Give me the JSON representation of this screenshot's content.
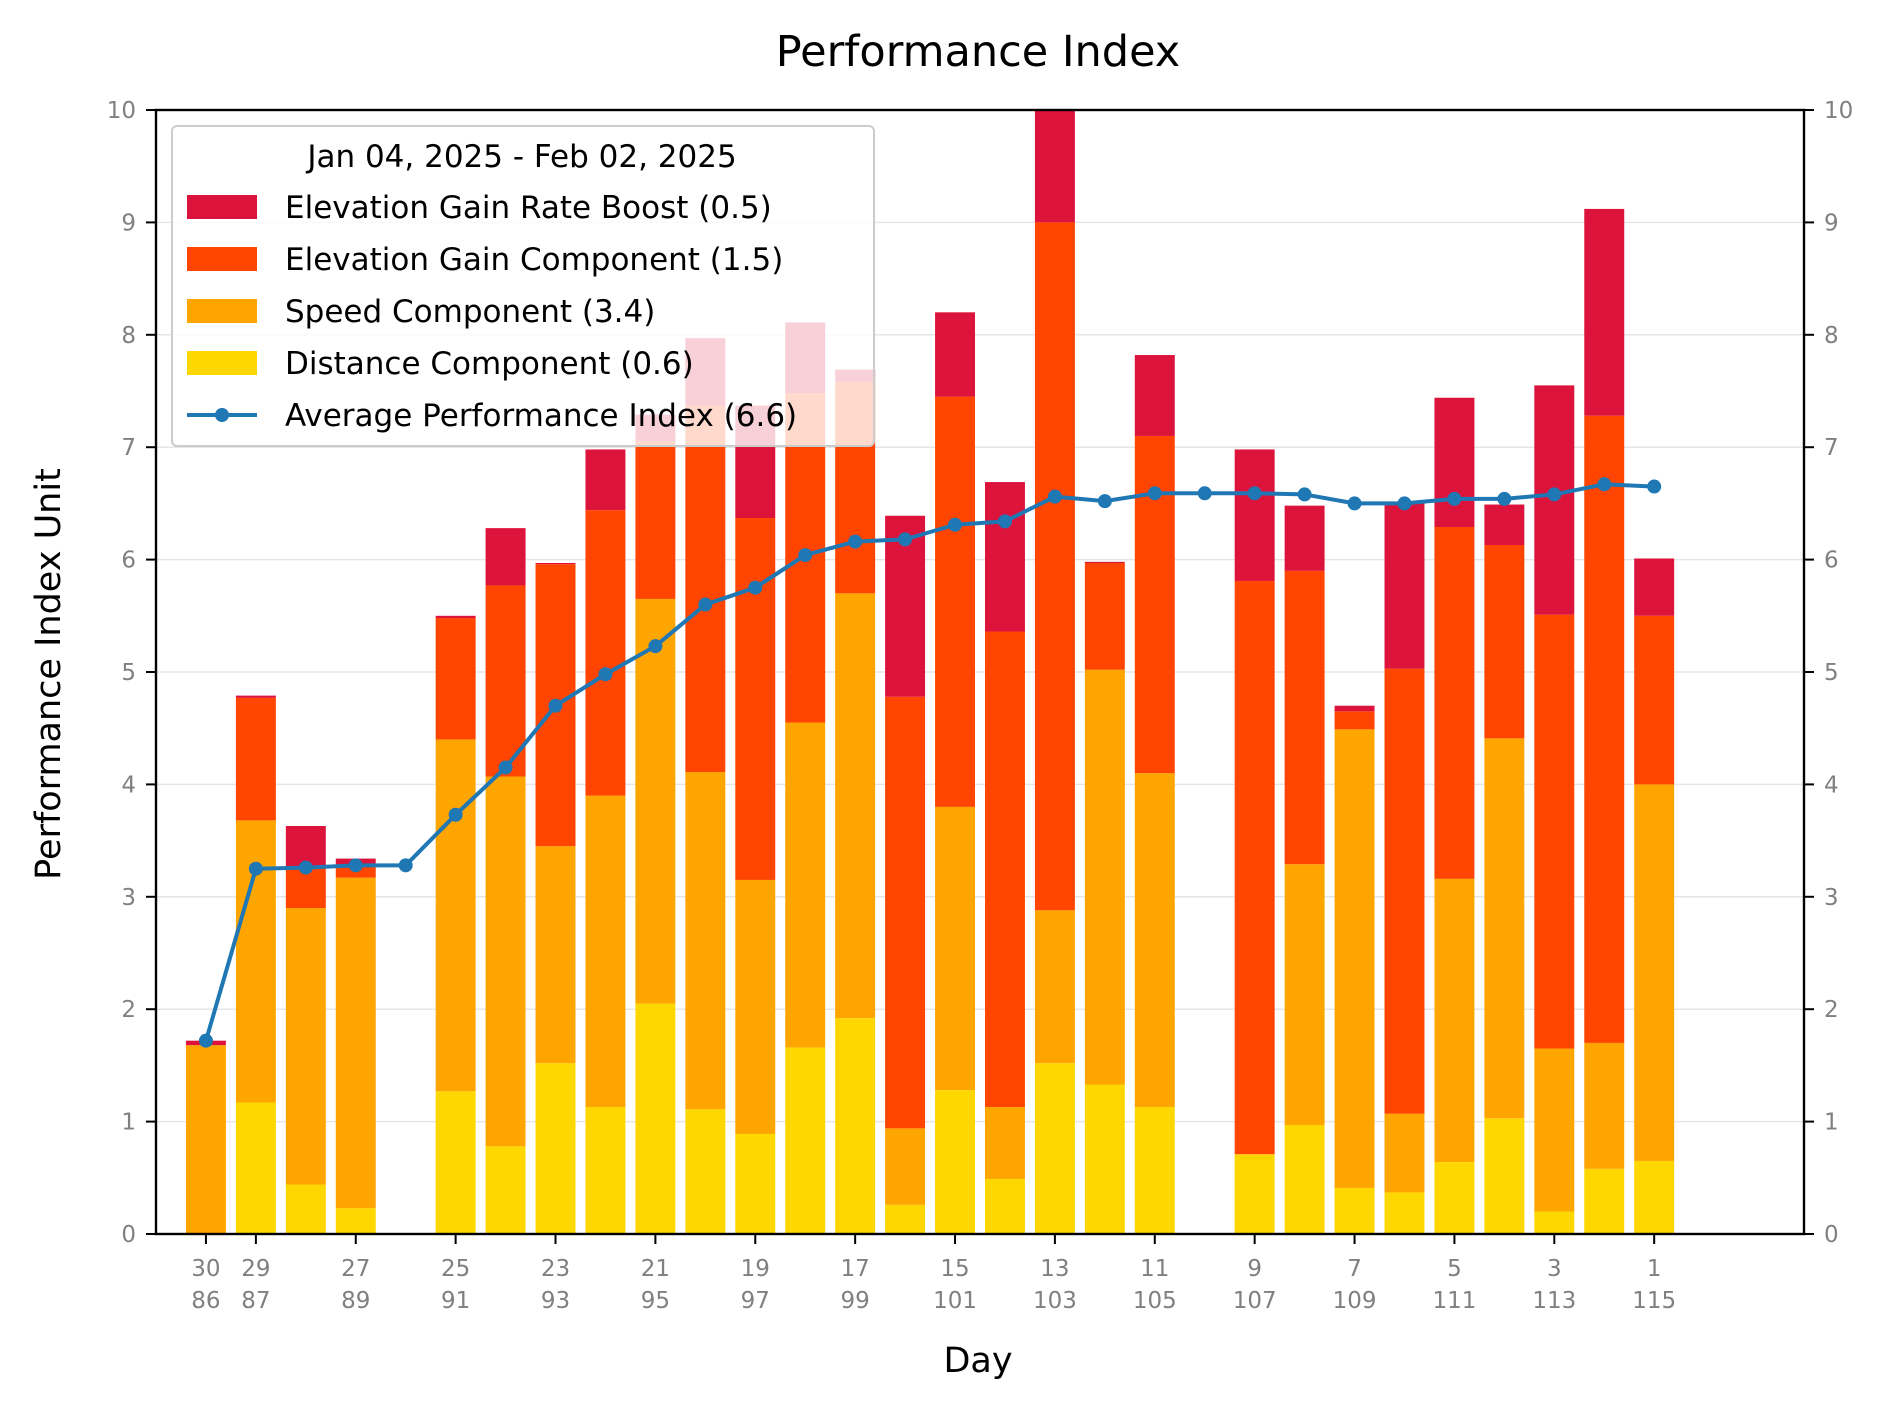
{
  "chart_data": {
    "type": "bar",
    "title": "Performance Index",
    "xlabel": "Day",
    "ylabel": "Performance Index Unit",
    "ylim": [
      0,
      10
    ],
    "yticks": [
      "0",
      "1",
      "2",
      "3",
      "4",
      "5",
      "6",
      "7",
      "8",
      "9",
      "10"
    ],
    "xlim": [
      85,
      118
    ],
    "stacked": true,
    "grid": "horizontal",
    "legend_position": "top-left",
    "legend_title": "Jan 04, 2025 - Feb 02, 2025",
    "x_ticks": [
      {
        "x": 86,
        "top": "30",
        "bottom": "86"
      },
      {
        "x": 87,
        "top": "29",
        "bottom": "87"
      },
      {
        "x": 89,
        "top": "27",
        "bottom": "89"
      },
      {
        "x": 91,
        "top": "25",
        "bottom": "91"
      },
      {
        "x": 93,
        "top": "23",
        "bottom": "93"
      },
      {
        "x": 95,
        "top": "21",
        "bottom": "95"
      },
      {
        "x": 97,
        "top": "19",
        "bottom": "97"
      },
      {
        "x": 99,
        "top": "17",
        "bottom": "99"
      },
      {
        "x": 101,
        "top": "15",
        "bottom": "101"
      },
      {
        "x": 103,
        "top": "13",
        "bottom": "103"
      },
      {
        "x": 105,
        "top": "11",
        "bottom": "105"
      },
      {
        "x": 107,
        "top": "9",
        "bottom": "107"
      },
      {
        "x": 109,
        "top": "7",
        "bottom": "109"
      },
      {
        "x": 111,
        "top": "5",
        "bottom": "111"
      },
      {
        "x": 113,
        "top": "3",
        "bottom": "113"
      },
      {
        "x": 115,
        "top": "1",
        "bottom": "115"
      }
    ],
    "x": [
      86,
      87,
      88,
      89,
      90,
      91,
      92,
      93,
      94,
      95,
      96,
      97,
      98,
      99,
      100,
      101,
      102,
      103,
      104,
      105,
      106,
      107,
      108,
      109,
      110,
      111,
      112,
      113,
      114,
      115
    ],
    "bar_series": [
      {
        "name": "Distance Component (0.6)",
        "color": "#FFD700",
        "values": [
          0,
          1.17,
          0.44,
          0.23,
          null,
          1.27,
          0.78,
          1.52,
          1.13,
          2.05,
          1.11,
          0.89,
          1.66,
          1.92,
          0.26,
          1.28,
          0.49,
          1.52,
          1.33,
          1.13,
          null,
          0.71,
          0.97,
          0.41,
          0.37,
          0.64,
          1.03,
          0.2,
          0.58,
          0.65
        ]
      },
      {
        "name": "Speed Component (3.4)",
        "color": "#FFA500",
        "values": [
          1.68,
          2.51,
          2.46,
          2.94,
          null,
          3.13,
          3.29,
          1.93,
          2.77,
          3.6,
          3.0,
          2.26,
          2.89,
          3.78,
          0.68,
          2.52,
          0.64,
          1.36,
          3.69,
          2.97,
          null,
          0,
          2.32,
          4.08,
          0.7,
          2.52,
          3.38,
          1.45,
          1.12,
          3.35
        ]
      },
      {
        "name": "Elevation Gain Component (1.5)",
        "color": "#FF4500",
        "values": [
          0,
          1.09,
          0.37,
          0.1,
          null,
          1.08,
          1.7,
          2.51,
          2.54,
          1.4,
          3.26,
          3.22,
          2.93,
          1.88,
          3.84,
          3.65,
          4.23,
          6.12,
          0.95,
          3.0,
          null,
          5.1,
          2.61,
          0.16,
          3.96,
          3.13,
          1.72,
          3.86,
          5.58,
          1.5
        ]
      },
      {
        "name": "Elevation Gain Rate Boost (0.5)",
        "color": "#DC143C",
        "values": [
          0.04,
          0.02,
          0.36,
          0.07,
          null,
          0.02,
          0.51,
          0.01,
          0.54,
          0.24,
          0.6,
          1.0,
          0.63,
          0.11,
          1.61,
          0.75,
          1.33,
          1.0,
          0.01,
          0.72,
          null,
          1.17,
          0.58,
          0.05,
          1.47,
          1.15,
          0.36,
          2.04,
          1.84,
          0.51
        ]
      }
    ],
    "line_series": {
      "name": "Average Performance Index (6.6)",
      "color": "#1F77B4",
      "x": [
        86,
        87,
        88,
        89,
        90,
        91,
        92,
        93,
        94,
        95,
        96,
        97,
        98,
        99,
        100,
        101,
        102,
        103,
        104,
        105,
        106,
        107,
        108,
        109,
        110,
        111,
        112,
        113,
        114,
        115
      ],
      "values": [
        1.72,
        3.25,
        3.26,
        3.28,
        3.28,
        3.73,
        4.15,
        4.7,
        4.98,
        5.23,
        5.6,
        5.75,
        6.04,
        6.16,
        6.18,
        6.31,
        6.34,
        6.56,
        6.52,
        6.59,
        6.59,
        6.59,
        6.58,
        6.5,
        6.5,
        6.54,
        6.54,
        6.58,
        6.67,
        6.65
      ]
    },
    "legend_order": [
      "Elevation Gain Rate Boost (0.5)",
      "Elevation Gain Component (1.5)",
      "Speed Component (3.4)",
      "Distance Component (0.6)",
      "Average Performance Index (6.6)"
    ]
  }
}
